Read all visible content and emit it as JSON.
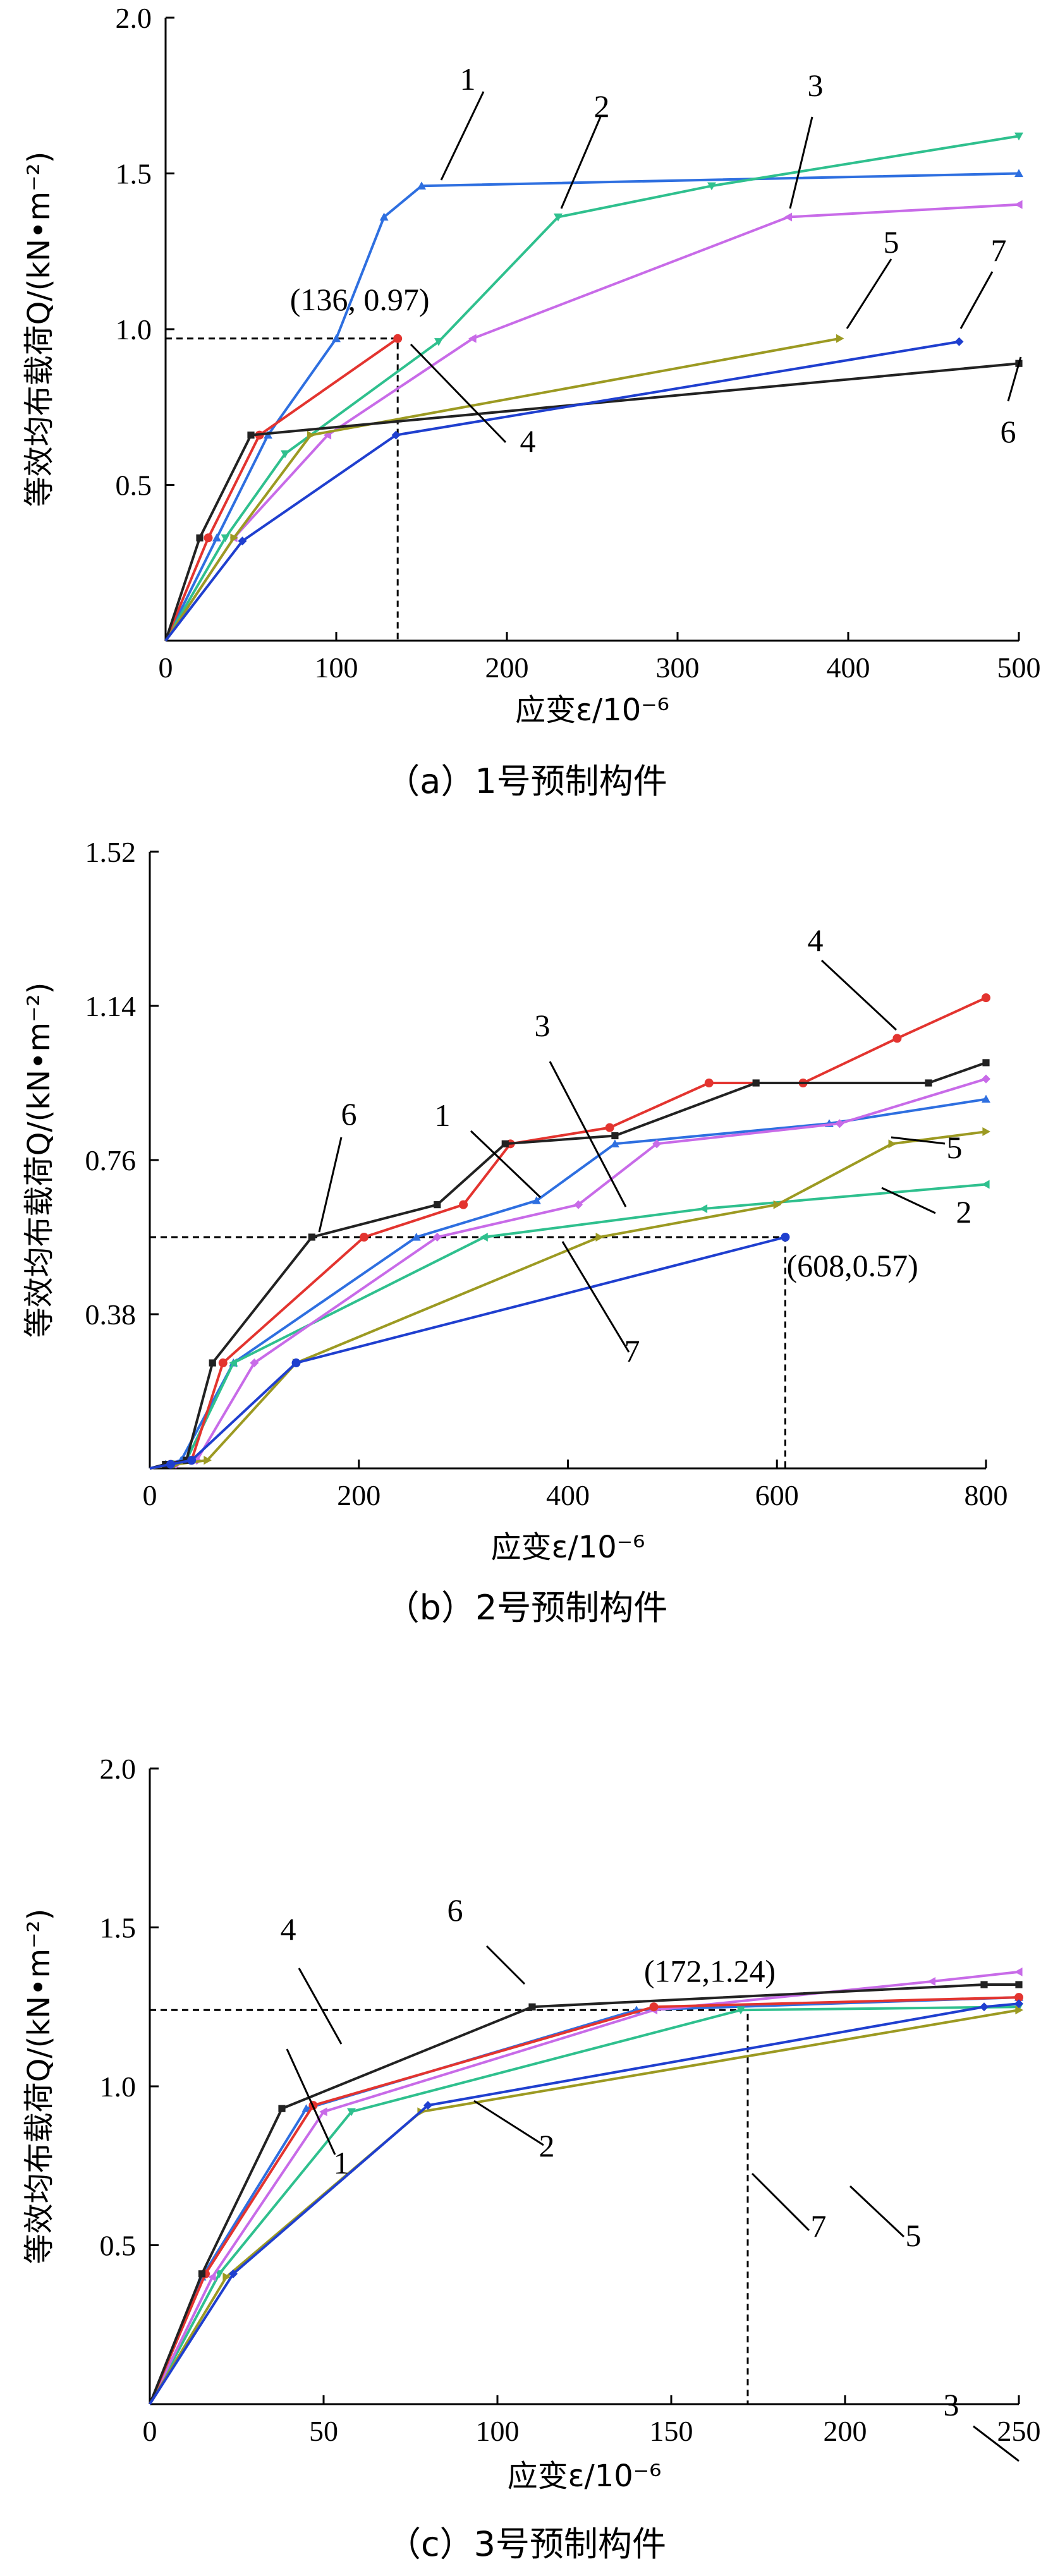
{
  "chart_data": [
    {
      "type": "line",
      "caption": "（a）1号预制构件",
      "xlabel": "应变ε/10⁻⁶",
      "ylabel": "等效均布载荷Q/(kN•m⁻²)",
      "xlim": [
        0,
        500
      ],
      "ylim": [
        0,
        2.0
      ],
      "xticks": [
        "0",
        "100",
        "200",
        "300",
        "400",
        "500"
      ],
      "yticks": [
        "0.5",
        "1.0",
        "1.5",
        "2.0"
      ],
      "marker_annotation": {
        "label": "(136, 0.97)",
        "x": 136,
        "y": 0.97
      },
      "series": [
        {
          "name": "1",
          "color": "#2e6fe0",
          "marker": "triangle",
          "points": [
            [
              0,
              0
            ],
            [
              30,
              0.33
            ],
            [
              60,
              0.66
            ],
            [
              100,
              0.97
            ],
            [
              128,
              1.36
            ],
            [
              150,
              1.46
            ],
            [
              500,
              1.5
            ]
          ]
        },
        {
          "name": "2",
          "color": "#2fc08e",
          "marker": "triangle-down",
          "points": [
            [
              0,
              0
            ],
            [
              35,
              0.33
            ],
            [
              70,
              0.6
            ],
            [
              160,
              0.96
            ],
            [
              230,
              1.36
            ],
            [
              320,
              1.46
            ],
            [
              500,
              1.62
            ]
          ]
        },
        {
          "name": "3",
          "color": "#c86be8",
          "marker": "triangle-left",
          "points": [
            [
              0,
              0
            ],
            [
              40,
              0.33
            ],
            [
              95,
              0.66
            ],
            [
              180,
              0.97
            ],
            [
              365,
              1.36
            ],
            [
              500,
              1.4
            ]
          ]
        },
        {
          "name": "4",
          "color": "#e3342f",
          "marker": "circle",
          "points": [
            [
              0,
              0
            ],
            [
              25,
              0.33
            ],
            [
              55,
              0.66
            ],
            [
              136,
              0.97
            ]
          ]
        },
        {
          "name": "5",
          "color": "#9c9a22",
          "marker": "triangle-right",
          "points": [
            [
              0,
              0
            ],
            [
              40,
              0.33
            ],
            [
              85,
              0.66
            ],
            [
              395,
              0.97
            ]
          ]
        },
        {
          "name": "6",
          "color": "#222222",
          "marker": "square",
          "points": [
            [
              0,
              0
            ],
            [
              20,
              0.33
            ],
            [
              50,
              0.66
            ],
            [
              500,
              0.89
            ]
          ]
        },
        {
          "name": "7",
          "color": "#1f3fcf",
          "marker": "diamond",
          "points": [
            [
              0,
              0
            ],
            [
              45,
              0.32
            ],
            [
              135,
              0.66
            ],
            [
              465,
              0.96
            ]
          ]
        }
      ],
      "series_labels": [
        {
          "name": "1",
          "lx": 1.18,
          "ly": 0.55,
          "tx": 1.0,
          "ty": 0.78
        },
        {
          "name": "2",
          "lx": 1.12,
          "ly": 0.42,
          "tx": 0.98,
          "ty": 0.62
        },
        {
          "name": "3",
          "lx": 1.07,
          "ly": 0.32,
          "tx": 0.88,
          "ty": 0.56
        },
        {
          "name": "4",
          "lx": 1.38,
          "ly": -0.25,
          "tx": 1.6,
          "ty": -0.45
        },
        {
          "name": "5",
          "lx": 1.03,
          "ly": 0.22,
          "tx": 1.08,
          "ty": 0.4
        },
        {
          "name": "6",
          "lx": 1.0,
          "ly": -0.05,
          "tx": 0.96,
          "ty": -0.25
        },
        {
          "name": "7",
          "lx": 1.05,
          "ly": 0.1,
          "tx": 1.11,
          "ty": 0.32
        }
      ]
    },
    {
      "type": "line",
      "caption": "（b）2号预制构件",
      "xlabel": "应变ε/10⁻⁶",
      "ylabel": "等效均布载荷Q/(kN•m⁻²)",
      "xlim": [
        0,
        800
      ],
      "ylim": [
        0,
        1.52
      ],
      "xticks": [
        "0",
        "200",
        "400",
        "600",
        "800"
      ],
      "yticks": [
        "0.38",
        "0.76",
        "1.14",
        "1.52"
      ],
      "marker_annotation": {
        "label": "(608,0.57)",
        "x": 608,
        "y": 0.57
      },
      "series": [
        {
          "name": "1",
          "color": "#2e6fe0",
          "marker": "triangle",
          "points": [
            [
              0,
              0
            ],
            [
              15,
              0.01
            ],
            [
              30,
              0.02
            ],
            [
              80,
              0.26
            ],
            [
              255,
              0.57
            ],
            [
              370,
              0.66
            ],
            [
              445,
              0.8
            ],
            [
              650,
              0.85
            ],
            [
              800,
              0.91
            ]
          ]
        },
        {
          "name": "2",
          "color": "#2fc08e",
          "marker": "triangle-left",
          "points": [
            [
              0,
              0
            ],
            [
              20,
              0.01
            ],
            [
              35,
              0.02
            ],
            [
              80,
              0.26
            ],
            [
              320,
              0.57
            ],
            [
              530,
              0.64
            ],
            [
              800,
              0.7
            ]
          ]
        },
        {
          "name": "3",
          "color": "#c86be8",
          "marker": "diamond",
          "points": [
            [
              0,
              0
            ],
            [
              25,
              0.01
            ],
            [
              45,
              0.02
            ],
            [
              100,
              0.26
            ],
            [
              275,
              0.57
            ],
            [
              410,
              0.65
            ],
            [
              485,
              0.8
            ],
            [
              660,
              0.85
            ],
            [
              800,
              0.96
            ]
          ]
        },
        {
          "name": "4",
          "color": "#e3342f",
          "marker": "circle",
          "points": [
            [
              0,
              0
            ],
            [
              20,
              0.01
            ],
            [
              40,
              0.02
            ],
            [
              70,
              0.26
            ],
            [
              205,
              0.57
            ],
            [
              300,
              0.65
            ],
            [
              345,
              0.8
            ],
            [
              440,
              0.84
            ],
            [
              535,
              0.95
            ],
            [
              625,
              0.95
            ],
            [
              715,
              1.06
            ],
            [
              800,
              1.16
            ]
          ]
        },
        {
          "name": "5",
          "color": "#9c9a22",
          "marker": "triangle-right",
          "points": [
            [
              0,
              0
            ],
            [
              25,
              0.01
            ],
            [
              55,
              0.02
            ],
            [
              140,
              0.26
            ],
            [
              430,
              0.57
            ],
            [
              600,
              0.65
            ],
            [
              710,
              0.8
            ],
            [
              800,
              0.83
            ]
          ]
        },
        {
          "name": "6",
          "color": "#222222",
          "marker": "square",
          "points": [
            [
              0,
              0
            ],
            [
              15,
              0.01
            ],
            [
              35,
              0.02
            ],
            [
              60,
              0.26
            ],
            [
              155,
              0.57
            ],
            [
              275,
              0.65
            ],
            [
              340,
              0.8
            ],
            [
              445,
              0.82
            ],
            [
              580,
              0.95
            ],
            [
              745,
              0.95
            ],
            [
              800,
              1.0
            ]
          ]
        },
        {
          "name": "7",
          "color": "#1f3fcf",
          "marker": "circle",
          "points": [
            [
              0,
              0
            ],
            [
              20,
              0.01
            ],
            [
              40,
              0.02
            ],
            [
              140,
              0.26
            ],
            [
              608,
              0.57
            ]
          ]
        }
      ],
      "series_labels": [
        {
          "name": "1",
          "lx": 1.09,
          "ly": 0.16,
          "tx": 0.93,
          "ty": 0.33
        },
        {
          "name": "2",
          "lx": 1.01,
          "ly": 0.09,
          "tx": 1.16,
          "ty": 0.02
        },
        {
          "name": "3",
          "lx": 1.07,
          "ly": 0.12,
          "tx": 1.0,
          "ty": 0.42
        },
        {
          "name": "4",
          "lx": 1.12,
          "ly": 0.1,
          "tx": 0.97,
          "ty": 0.24
        },
        {
          "name": "5",
          "lx": 1.0,
          "ly": 0.0,
          "tx": 1.1,
          "ty": -0.15
        },
        {
          "name": "6",
          "lx": 1.0,
          "ly": 0.0,
          "tx": 1.12,
          "ty": 0.23
        },
        {
          "name": "7",
          "lx": 1.21,
          "ly": -0.12,
          "tx": 1.31,
          "ty": -0.3
        }
      ]
    },
    {
      "type": "line",
      "caption": "（c）3号预制构件",
      "xlabel": "应变ε/10⁻⁶",
      "ylabel": "等效均布载荷Q/(kN•m⁻²)",
      "xlim": [
        0,
        250
      ],
      "ylim": [
        0,
        2.0
      ],
      "xticks": [
        "0",
        "50",
        "100",
        "150",
        "200",
        "250"
      ],
      "yticks": [
        "0.5",
        "1.0",
        "1.5",
        "2.0"
      ],
      "marker_annotation": {
        "label": "(172,1.24)",
        "x": 172,
        "y": 1.24
      },
      "series": [
        {
          "name": "1",
          "color": "#2e6fe0",
          "marker": "triangle",
          "points": [
            [
              0,
              0
            ],
            [
              15,
              0.4
            ],
            [
              45,
              0.93
            ],
            [
              140,
              1.24
            ],
            [
              250,
              1.28
            ]
          ]
        },
        {
          "name": "2",
          "color": "#2fc08e",
          "marker": "triangle-down",
          "points": [
            [
              0,
              0
            ],
            [
              20,
              0.41
            ],
            [
              58,
              0.92
            ],
            [
              170,
              1.24
            ],
            [
              250,
              1.25
            ]
          ]
        },
        {
          "name": "3",
          "color": "#c86be8",
          "marker": "triangle-left",
          "points": [
            [
              0,
              0
            ],
            [
              18,
              0.4
            ],
            [
              50,
              0.92
            ],
            [
              145,
              1.24
            ],
            [
              225,
              1.33
            ],
            [
              250,
              1.36
            ]
          ]
        },
        {
          "name": "4",
          "color": "#e3342f",
          "marker": "circle",
          "points": [
            [
              0,
              0
            ],
            [
              16,
              0.41
            ],
            [
              47,
              0.94
            ],
            [
              145,
              1.25
            ],
            [
              250,
              1.28
            ]
          ]
        },
        {
          "name": "5",
          "color": "#9c9a22",
          "marker": "triangle-right",
          "points": [
            [
              0,
              0
            ],
            [
              22,
              0.4
            ],
            [
              78,
              0.92
            ],
            [
              250,
              1.24
            ]
          ]
        },
        {
          "name": "6",
          "color": "#222222",
          "marker": "square",
          "points": [
            [
              0,
              0
            ],
            [
              15,
              0.41
            ],
            [
              38,
              0.93
            ],
            [
              110,
              1.25
            ],
            [
              240,
              1.32
            ],
            [
              250,
              1.32
            ]
          ]
        },
        {
          "name": "7",
          "color": "#1f3fcf",
          "marker": "diamond",
          "points": [
            [
              0,
              0
            ],
            [
              24,
              0.41
            ],
            [
              80,
              0.94
            ],
            [
              240,
              1.25
            ],
            [
              250,
              1.26
            ]
          ]
        }
      ],
      "series_labels": [
        {
          "name": "1",
          "lx": 1.19,
          "ly": -0.42,
          "tx": 1.35,
          "ty": -0.6
        },
        {
          "name": "2",
          "lx": 1.06,
          "ly": -0.2,
          "tx": 1.7,
          "ty": -0.47
        },
        {
          "name": "3",
          "lx": 0.9,
          "ly": 0.15,
          "tx": 0.82,
          "ty": 0.27
        },
        {
          "name": "4",
          "lx": 1.18,
          "ly": 0.28,
          "tx": 1.12,
          "ty": 0.44
        },
        {
          "name": "5",
          "lx": 1.02,
          "ly": -0.05,
          "tx": 1.18,
          "ty": -0.3
        },
        {
          "name": "6",
          "lx": 1.0,
          "ly": 0.0,
          "tx": 0.82,
          "ty": 0.13
        },
        {
          "name": "7",
          "lx": 1.0,
          "ly": 0.0,
          "tx": 1.25,
          "ty": -0.28
        }
      ]
    }
  ]
}
